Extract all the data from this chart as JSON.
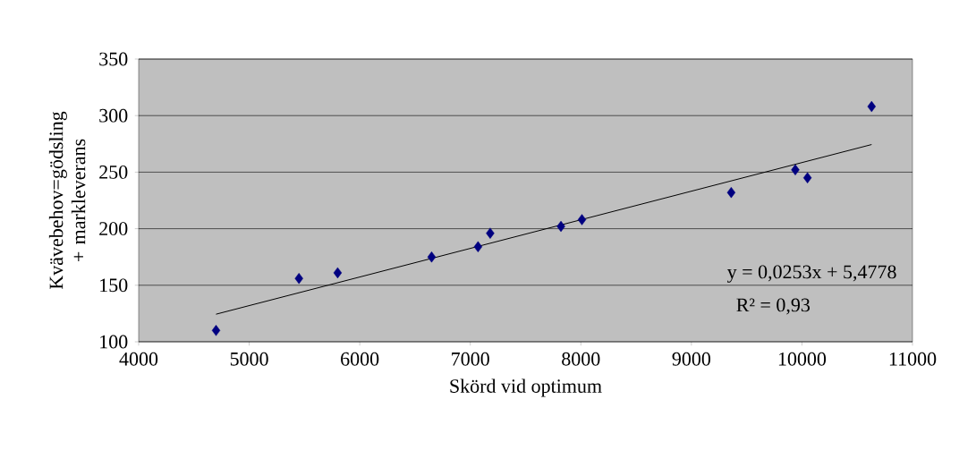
{
  "chart_data": {
    "type": "scatter",
    "xlabel": "Skörd vid optimum",
    "ylabel": "Kvävebehov=gödsling + markleverans",
    "xlim": [
      4000,
      11000
    ],
    "xticks": [
      4000,
      5000,
      6000,
      7000,
      8000,
      9000,
      10000,
      11000
    ],
    "ylim": [
      100,
      350
    ],
    "yticks": [
      100,
      150,
      200,
      250,
      300,
      350
    ],
    "grid": "y",
    "series": [
      {
        "color": "#000080",
        "marker": "diamond",
        "x": [
          4700,
          5450,
          5800,
          6650,
          7070,
          7180,
          7820,
          8010,
          9360,
          9940,
          10050,
          10630
        ],
        "values": [
          110,
          156,
          161,
          175,
          184,
          196,
          202,
          208,
          232,
          252,
          245,
          308
        ]
      },
      {
        "type": "line",
        "color": "#000000",
        "marker": "none",
        "x": [
          4700,
          10630
        ],
        "values": [
          124.4,
          274.4
        ]
      }
    ],
    "annotations": [
      "y = 0,0253x + 5,4778",
      "R² = 0,93"
    ]
  }
}
